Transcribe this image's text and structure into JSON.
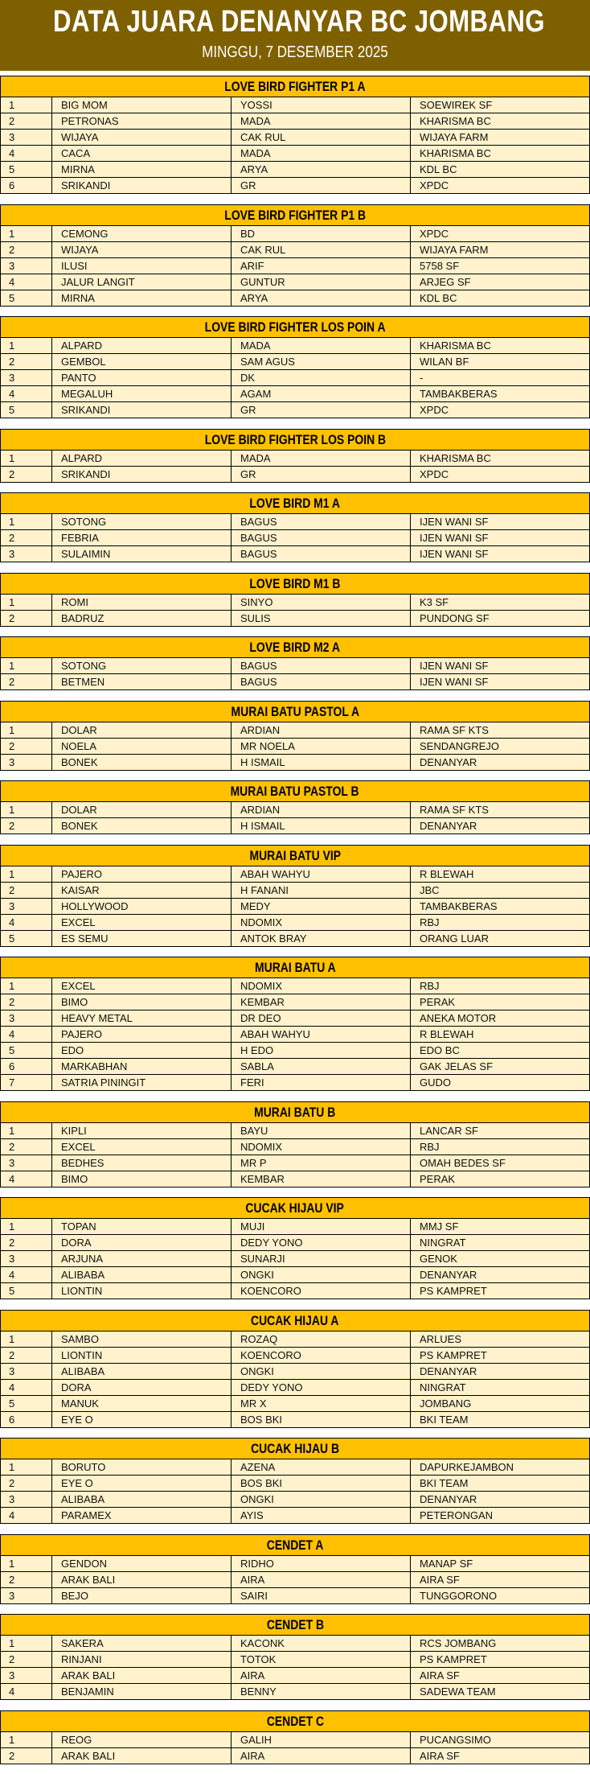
{
  "header": {
    "title": "DATA JUARA DENANYAR BC JOMBANG",
    "subtitle": "MINGGU, 7 DESEMBER 2025"
  },
  "colors": {
    "header_bg": "#7f6000",
    "section_bg": "#ffc000",
    "row_bg": "#fff2cc"
  },
  "sections": [
    {
      "title": "LOVE BIRD FIGHTER P1 A",
      "rows": [
        [
          "1",
          "BIG MOM",
          "YOSSI",
          "SOEWIREK SF"
        ],
        [
          "2",
          "PETRONAS",
          "MADA",
          "KHARISMA BC"
        ],
        [
          "3",
          "WIJAYA",
          "CAK RUL",
          "WIJAYA FARM"
        ],
        [
          "4",
          "CACA",
          "MADA",
          "KHARISMA BC"
        ],
        [
          "5",
          "MIRNA",
          "ARYA",
          "KDL BC"
        ],
        [
          "6",
          "SRIKANDI",
          "GR",
          "XPDC"
        ]
      ]
    },
    {
      "title": "LOVE BIRD FIGHTER P1 B",
      "rows": [
        [
          "1",
          "CEMONG",
          "BD",
          "XPDC"
        ],
        [
          "2",
          "WIJAYA",
          "CAK RUL",
          "WIJAYA FARM"
        ],
        [
          "3",
          "ILUSI",
          "ARIF",
          "5758 SF"
        ],
        [
          "4",
          "JALUR LANGIT",
          "GUNTUR",
          "ARJEG SF"
        ],
        [
          "5",
          "MIRNA",
          "ARYA",
          "KDL BC"
        ]
      ]
    },
    {
      "title": "LOVE BIRD FIGHTER LOS POIN A",
      "rows": [
        [
          "1",
          "ALPARD",
          "MADA",
          "KHARISMA BC"
        ],
        [
          "2",
          "GEMBOL",
          "SAM AGUS",
          "WILAN BF"
        ],
        [
          "3",
          "PANTO",
          "DK",
          "-"
        ],
        [
          "4",
          "MEGALUH",
          "AGAM",
          "TAMBAKBERAS"
        ],
        [
          "5",
          "SRIKANDI",
          "GR",
          "XPDC"
        ]
      ]
    },
    {
      "title": "LOVE BIRD FIGHTER LOS POIN B",
      "rows": [
        [
          "1",
          "ALPARD",
          "MADA",
          "KHARISMA BC"
        ],
        [
          "2",
          "SRIKANDI",
          "GR",
          "XPDC"
        ]
      ]
    },
    {
      "title": "LOVE BIRD M1 A",
      "rows": [
        [
          "1",
          "SOTONG",
          "BAGUS",
          "IJEN WANI SF"
        ],
        [
          "2",
          "FEBRIA",
          "BAGUS",
          "IJEN WANI SF"
        ],
        [
          "3",
          "SULAIMIN",
          "BAGUS",
          "IJEN WANI SF"
        ]
      ]
    },
    {
      "title": "LOVE BIRD M1 B",
      "rows": [
        [
          "1",
          "ROMI",
          "SINYO",
          "K3 SF"
        ],
        [
          "2",
          "BADRUZ",
          "SULIS",
          "PUNDONG SF"
        ]
      ]
    },
    {
      "title": "LOVE BIRD M2 A",
      "rows": [
        [
          "1",
          "SOTONG",
          "BAGUS",
          "IJEN WANI SF"
        ],
        [
          "2",
          "BETMEN",
          "BAGUS",
          "IJEN WANI SF"
        ]
      ]
    },
    {
      "title": "MURAI BATU PASTOL A",
      "rows": [
        [
          "1",
          "DOLAR",
          "ARDIAN",
          "RAMA SF KTS"
        ],
        [
          "2",
          "NOELA",
          "MR NOELA",
          "SENDANGREJO"
        ],
        [
          "3",
          "BONEK",
          "H ISMAIL",
          "DENANYAR"
        ]
      ]
    },
    {
      "title": "MURAI BATU PASTOL B",
      "rows": [
        [
          "1",
          "DOLAR",
          "ARDIAN",
          "RAMA SF KTS"
        ],
        [
          "2",
          "BONEK",
          "H ISMAIL",
          "DENANYAR"
        ]
      ]
    },
    {
      "title": "MURAI BATU VIP",
      "rows": [
        [
          "1",
          "PAJERO",
          "ABAH WAHYU",
          "R BLEWAH"
        ],
        [
          "2",
          "KAISAR",
          "H FANANI",
          "JBC"
        ],
        [
          "3",
          "HOLLYWOOD",
          "MEDY",
          "TAMBAKBERAS"
        ],
        [
          "4",
          "EXCEL",
          "NDOMIX",
          "RBJ"
        ],
        [
          "5",
          "ES SEMU",
          "ANTOK BRAY",
          "ORANG LUAR"
        ]
      ]
    },
    {
      "title": "MURAI BATU A",
      "rows": [
        [
          "1",
          "EXCEL",
          "NDOMIX",
          "RBJ"
        ],
        [
          "2",
          "BIMO",
          "KEMBAR",
          "PERAK"
        ],
        [
          "3",
          "HEAVY METAL",
          "DR DEO",
          "ANEKA MOTOR"
        ],
        [
          "4",
          "PAJERO",
          "ABAH WAHYU",
          "R BLEWAH"
        ],
        [
          "5",
          "EDO",
          "H EDO",
          "EDO BC"
        ],
        [
          "6",
          "MARKABHAN",
          "SABLA",
          "GAK JELAS SF"
        ],
        [
          "7",
          "SATRIA PININGIT",
          "FERI",
          "GUDO"
        ]
      ]
    },
    {
      "title": "MURAI BATU B",
      "rows": [
        [
          "1",
          "KIPLI",
          "BAYU",
          "LANCAR SF"
        ],
        [
          "2",
          "EXCEL",
          "NDOMIX",
          "RBJ"
        ],
        [
          "3",
          "BEDHES",
          "MR P",
          "OMAH BEDES SF"
        ],
        [
          "4",
          "BIMO",
          "KEMBAR",
          "PERAK"
        ]
      ]
    },
    {
      "title": "CUCAK HIJAU VIP",
      "rows": [
        [
          "1",
          "TOPAN",
          "MUJI",
          "MMJ SF"
        ],
        [
          "2",
          "DORA",
          "DEDY YONO",
          "NINGRAT"
        ],
        [
          "3",
          "ARJUNA",
          "SUNARJI",
          "GENOK"
        ],
        [
          "4",
          "ALIBABA",
          "ONGKI",
          "DENANYAR"
        ],
        [
          "5",
          "LIONTIN",
          "KOENCORO",
          "PS KAMPRET"
        ]
      ]
    },
    {
      "title": "CUCAK HIJAU A",
      "rows": [
        [
          "1",
          "SAMBO",
          "ROZAQ",
          "ARLUES"
        ],
        [
          "2",
          "LIONTIN",
          "KOENCORO",
          "PS KAMPRET"
        ],
        [
          "3",
          "ALIBABA",
          "ONGKI",
          "DENANYAR"
        ],
        [
          "4",
          "DORA",
          "DEDY YONO",
          "NINGRAT"
        ],
        [
          "5",
          "MANUK",
          "MR X",
          "JOMBANG"
        ],
        [
          "6",
          "EYE O",
          "BOS BKI",
          "BKI TEAM"
        ]
      ]
    },
    {
      "title": "CUCAK HIJAU B",
      "rows": [
        [
          "1",
          "BORUTO",
          "AZENA",
          "DAPURKEJAMBON"
        ],
        [
          "2",
          "EYE O",
          "BOS BKI",
          "BKI TEAM"
        ],
        [
          "3",
          "ALIBABA",
          "ONGKI",
          "DENANYAR"
        ],
        [
          "4",
          "PARAMEX",
          "AYIS",
          "PETERONGAN"
        ]
      ]
    },
    {
      "title": "CENDET A",
      "rows": [
        [
          "1",
          "GENDON",
          "RIDHO",
          "MANAP SF"
        ],
        [
          "2",
          "ARAK BALI",
          "AIRA",
          "AIRA SF"
        ],
        [
          "3",
          "BEJO",
          "SAIRI",
          "TUNGGORONO"
        ]
      ]
    },
    {
      "title": "CENDET B",
      "rows": [
        [
          "1",
          "SAKERA",
          "KACONK",
          "RCS JOMBANG"
        ],
        [
          "2",
          "RINJANI",
          "TOTOK",
          "PS KAMPRET"
        ],
        [
          "3",
          "ARAK BALI",
          "AIRA",
          "AIRA SF"
        ],
        [
          "4",
          "BENJAMIN",
          "BENNY",
          "SADEWA TEAM"
        ]
      ]
    },
    {
      "title": "CENDET C",
      "rows": [
        [
          "1",
          "REOG",
          "GALIH",
          "PUCANGSIMO"
        ],
        [
          "2",
          "ARAK BALI",
          "AIRA",
          "AIRA SF"
        ]
      ]
    }
  ]
}
